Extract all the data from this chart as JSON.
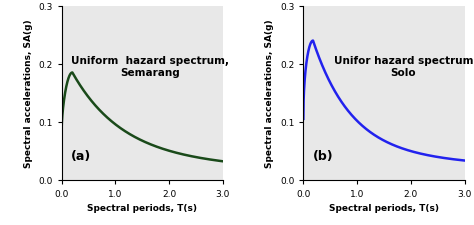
{
  "title_a": "Uniform  hazard spectrum,\nSemarang",
  "title_b": "Unifor hazard spectrum\nSolo",
  "xlabel": "Spectral periods, T(s)",
  "ylabel": "Spectral accelerations, SA(g)",
  "label_a": "(a)",
  "label_b": "(b)",
  "color_a": "#1a4a1a",
  "color_b": "#2222ee",
  "xlim": [
    0.0,
    3.0
  ],
  "ylim": [
    0.0,
    0.3
  ],
  "xticks": [
    0.0,
    1.0,
    2.0,
    3.0
  ],
  "yticks": [
    0.0,
    0.1,
    0.2,
    0.3
  ],
  "linewidth": 1.8,
  "title_fontsize": 7.5,
  "label_fontsize": 6.5,
  "tick_fontsize": 6.5,
  "anno_fontsize": 9,
  "bg_color": "#e8e8e8"
}
